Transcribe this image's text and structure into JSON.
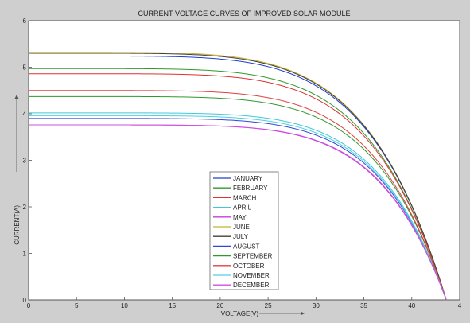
{
  "chart_data": {
    "type": "line",
    "title": "CURRENT-VOLTAGE CURVES OF IMPROVED SOLAR MODULE",
    "xlabel": "VOLTAGE(V)",
    "ylabel": "CURRENT(A)",
    "xlim": [
      0,
      45
    ],
    "ylim": [
      0,
      6
    ],
    "x_ticks": [
      "0",
      "5",
      "10",
      "15",
      "20",
      "25",
      "30",
      "35",
      "40",
      "4"
    ],
    "y_ticks": [
      "0",
      "1",
      "2",
      "3",
      "4",
      "5",
      "6"
    ],
    "grid": false,
    "legend_position": "center-bottom",
    "voc": 43.6,
    "series": [
      {
        "name": "JANUARY",
        "isc": 5.24,
        "knee": 0.92,
        "color": "#1f3fd1"
      },
      {
        "name": "FEBRUARY",
        "isc": 4.97,
        "knee": 0.84,
        "color": "#2e9a2e"
      },
      {
        "name": "MARCH",
        "isc": 4.86,
        "knee": 0.8,
        "color": "#e03030"
      },
      {
        "name": "APRIL",
        "isc": 4.02,
        "knee": 0.64,
        "color": "#40c8d8"
      },
      {
        "name": "MAY",
        "isc": 3.76,
        "knee": 0.62,
        "color": "#c040d8"
      },
      {
        "name": "JUNE",
        "isc": 5.32,
        "knee": 0.95,
        "color": "#c8b030"
      },
      {
        "name": "JULY",
        "isc": 5.3,
        "knee": 0.95,
        "color": "#404040"
      },
      {
        "name": "AUGUST",
        "isc": 3.9,
        "knee": 0.63,
        "color": "#3048d8"
      },
      {
        "name": "SEPTEMBER",
        "isc": 4.37,
        "knee": 0.7,
        "color": "#2e9a2e"
      },
      {
        "name": "OCTOBER",
        "isc": 4.5,
        "knee": 0.73,
        "color": "#e04040"
      },
      {
        "name": "NOVEMBER",
        "isc": 3.96,
        "knee": 0.64,
        "color": "#50d0e0"
      },
      {
        "name": "DECEMBER",
        "isc": 3.76,
        "knee": 0.6,
        "color": "#d050e0"
      }
    ]
  }
}
